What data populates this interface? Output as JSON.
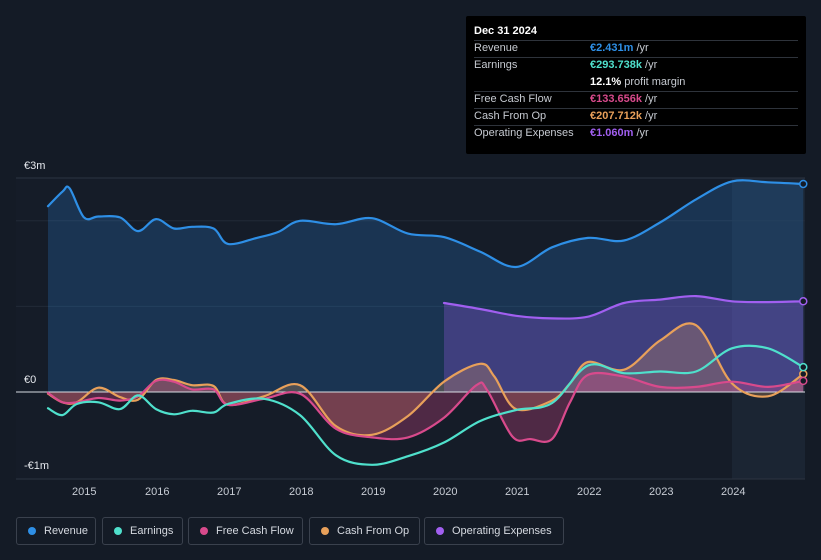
{
  "chart_data": {
    "type": "area",
    "currency_unit": "€",
    "y_ticks": [
      {
        "label": "€3m",
        "value": 2.5
      },
      {
        "label": "€0",
        "value": 0
      },
      {
        "label": "-€1m",
        "value": -0.85
      }
    ],
    "ylim": [
      -1.0,
      2.5
    ],
    "xlim": [
      2014.5,
      2025.0
    ],
    "x_ticks": [
      "2015",
      "2016",
      "2017",
      "2018",
      "2019",
      "2020",
      "2021",
      "2022",
      "2023",
      "2024"
    ],
    "highlight_from": 2024.0,
    "series": [
      {
        "name": "Revenue",
        "color": "#2e8fe6",
        "fill": true,
        "x": [
          2014.5,
          2014.7,
          2014.8,
          2015.0,
          2015.2,
          2015.5,
          2015.75,
          2016.0,
          2016.25,
          2016.5,
          2016.8,
          2017.0,
          2017.4,
          2017.7,
          2018.0,
          2018.5,
          2019.0,
          2019.5,
          2020.0,
          2020.5,
          2021.0,
          2021.5,
          2022.0,
          2022.5,
          2023.0,
          2023.5,
          2024.0,
          2024.5,
          2024.99
        ],
        "values": [
          2.17,
          2.34,
          2.38,
          2.04,
          2.05,
          2.04,
          1.88,
          2.02,
          1.91,
          1.93,
          1.91,
          1.73,
          1.8,
          1.87,
          2.0,
          1.96,
          2.03,
          1.85,
          1.81,
          1.64,
          1.46,
          1.69,
          1.8,
          1.77,
          1.98,
          2.25,
          2.46,
          2.45,
          2.43
        ]
      },
      {
        "name": "Earnings",
        "color": "#4fe0cc",
        "fill": false,
        "x": [
          2014.5,
          2014.7,
          2014.9,
          2015.2,
          2015.5,
          2015.75,
          2016.0,
          2016.25,
          2016.5,
          2016.8,
          2017.0,
          2017.5,
          2018.0,
          2018.5,
          2019.0,
          2019.5,
          2020.0,
          2020.5,
          2021.0,
          2021.5,
          2022.0,
          2022.5,
          2023.0,
          2023.5,
          2024.0,
          2024.5,
          2024.99
        ],
        "values": [
          -0.19,
          -0.27,
          -0.14,
          -0.12,
          -0.2,
          -0.04,
          -0.2,
          -0.26,
          -0.22,
          -0.24,
          -0.14,
          -0.08,
          -0.27,
          -0.74,
          -0.85,
          -0.75,
          -0.59,
          -0.34,
          -0.21,
          -0.13,
          0.31,
          0.22,
          0.24,
          0.24,
          0.51,
          0.51,
          0.29
        ]
      },
      {
        "name": "Free Cash Flow",
        "color": "#d84a8c",
        "fill": true,
        "x": [
          2014.5,
          2014.7,
          2014.9,
          2015.2,
          2015.5,
          2015.75,
          2016.0,
          2016.25,
          2016.5,
          2016.8,
          2017.0,
          2017.5,
          2018.0,
          2018.5,
          2019.0,
          2019.5,
          2020.0,
          2020.45,
          2020.6,
          2020.95,
          2021.2,
          2021.5,
          2021.75,
          2022.0,
          2022.5,
          2023.0,
          2023.5,
          2024.0,
          2024.5,
          2024.99
        ],
        "values": [
          -0.01,
          -0.12,
          -0.12,
          -0.07,
          -0.1,
          -0.05,
          0.13,
          0.12,
          0.03,
          0.03,
          -0.15,
          -0.08,
          -0.02,
          -0.43,
          -0.53,
          -0.53,
          -0.3,
          0.08,
          0.02,
          -0.52,
          -0.55,
          -0.55,
          -0.12,
          0.2,
          0.18,
          0.06,
          0.06,
          0.12,
          0.06,
          0.13
        ]
      },
      {
        "name": "Cash From Op",
        "color": "#e8a05a",
        "fill": true,
        "x": [
          2014.5,
          2014.7,
          2014.9,
          2015.2,
          2015.5,
          2015.75,
          2016.0,
          2016.25,
          2016.5,
          2016.8,
          2017.0,
          2017.5,
          2018.0,
          2018.5,
          2019.0,
          2019.5,
          2020.0,
          2020.5,
          2020.7,
          2021.0,
          2021.5,
          2021.75,
          2022.0,
          2022.5,
          2023.0,
          2023.5,
          2024.0,
          2024.5,
          2024.99
        ],
        "values": [
          -0.02,
          -0.12,
          -0.12,
          0.05,
          -0.06,
          -0.09,
          0.14,
          0.14,
          0.08,
          0.07,
          -0.15,
          -0.05,
          0.08,
          -0.4,
          -0.5,
          -0.28,
          0.12,
          0.33,
          0.18,
          -0.2,
          -0.1,
          0.1,
          0.35,
          0.26,
          0.6,
          0.78,
          0.1,
          -0.05,
          0.21
        ]
      },
      {
        "name": "Operating Expenses",
        "color": "#a15ff0",
        "fill": true,
        "x": [
          2020.0,
          2020.5,
          2021.0,
          2021.5,
          2022.0,
          2022.5,
          2023.0,
          2023.5,
          2024.0,
          2024.5,
          2024.99
        ],
        "values": [
          1.04,
          0.97,
          0.89,
          0.86,
          0.88,
          1.04,
          1.08,
          1.12,
          1.06,
          1.05,
          1.06
        ]
      }
    ]
  },
  "tooltip": {
    "date": "Dec 31 2024",
    "rows": [
      {
        "label": "Revenue",
        "value": "€2.431m",
        "unit": " /yr",
        "color": "#2e8fe6"
      },
      {
        "label": "Earnings",
        "value": "€293.738k",
        "unit": " /yr",
        "color": "#4fe0cc"
      },
      {
        "label": "",
        "value": "12.1%",
        "unit": " profit margin",
        "color": "#ffffff"
      },
      {
        "label": "Free Cash Flow",
        "value": "€133.656k",
        "unit": " /yr",
        "color": "#d84a8c"
      },
      {
        "label": "Cash From Op",
        "value": "€207.712k",
        "unit": " /yr",
        "color": "#e8a05a"
      },
      {
        "label": "Operating Expenses",
        "value": "€1.060m",
        "unit": " /yr",
        "color": "#a15ff0"
      }
    ]
  },
  "legend": [
    {
      "label": "Revenue",
      "color": "#2e8fe6"
    },
    {
      "label": "Earnings",
      "color": "#4fe0cc"
    },
    {
      "label": "Free Cash Flow",
      "color": "#d84a8c"
    },
    {
      "label": "Cash From Op",
      "color": "#e8a05a"
    },
    {
      "label": "Operating Expenses",
      "color": "#a15ff0"
    }
  ]
}
